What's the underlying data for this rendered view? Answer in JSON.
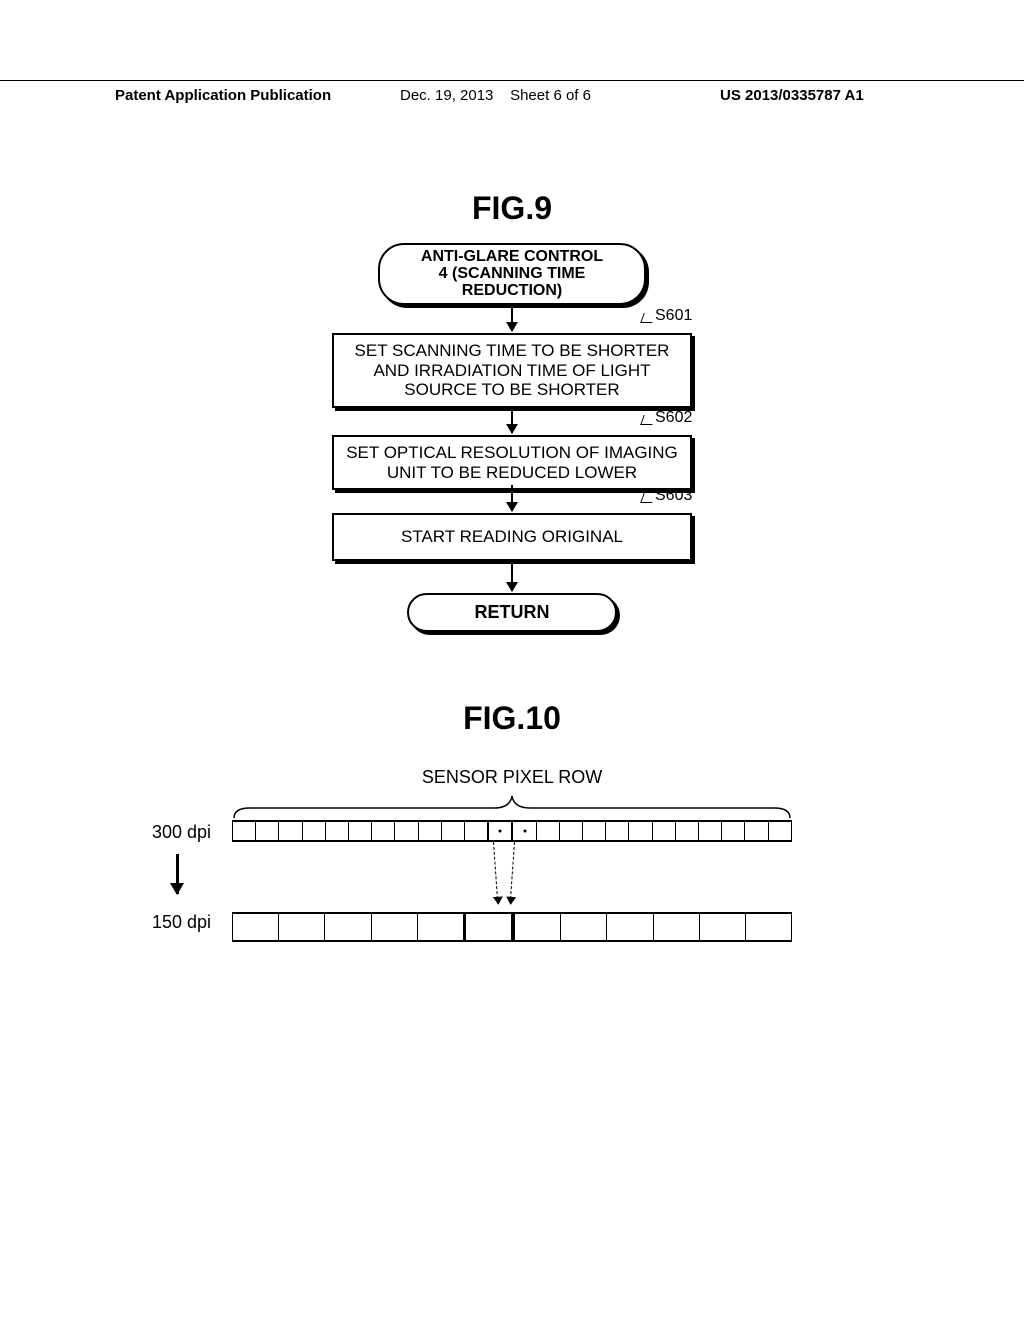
{
  "header": {
    "left": "Patent Application Publication",
    "date": "Dec. 19, 2013",
    "sheet": "Sheet 6 of 6",
    "pubno": "US 2013/0335787 A1"
  },
  "fig9": {
    "title": "FIG.9",
    "start": "ANTI-GLARE CONTROL\n4 (SCANNING TIME\nREDUCTION)",
    "steps": [
      {
        "id": "S601",
        "text": "SET SCANNING TIME TO BE SHORTER AND IRRADIATION TIME OF LIGHT SOURCE TO BE SHORTER"
      },
      {
        "id": "S602",
        "text": "SET OPTICAL RESOLUTION OF IMAGING UNIT TO BE REDUCED LOWER"
      },
      {
        "id": "S603",
        "text": "START READING ORIGINAL"
      }
    ],
    "return": "RETURN"
  },
  "fig10": {
    "title": "FIG.10",
    "sensor_label": "SENSOR PIXEL ROW",
    "dpi_top": "300 dpi",
    "dpi_bottom": "150 dpi",
    "top_cells": 24,
    "top_highlight": [
      11,
      12
    ],
    "bottom_cells": 12,
    "bottom_highlight": [
      5
    ],
    "colors": {
      "line": "#000000",
      "bg": "#ffffff"
    }
  }
}
